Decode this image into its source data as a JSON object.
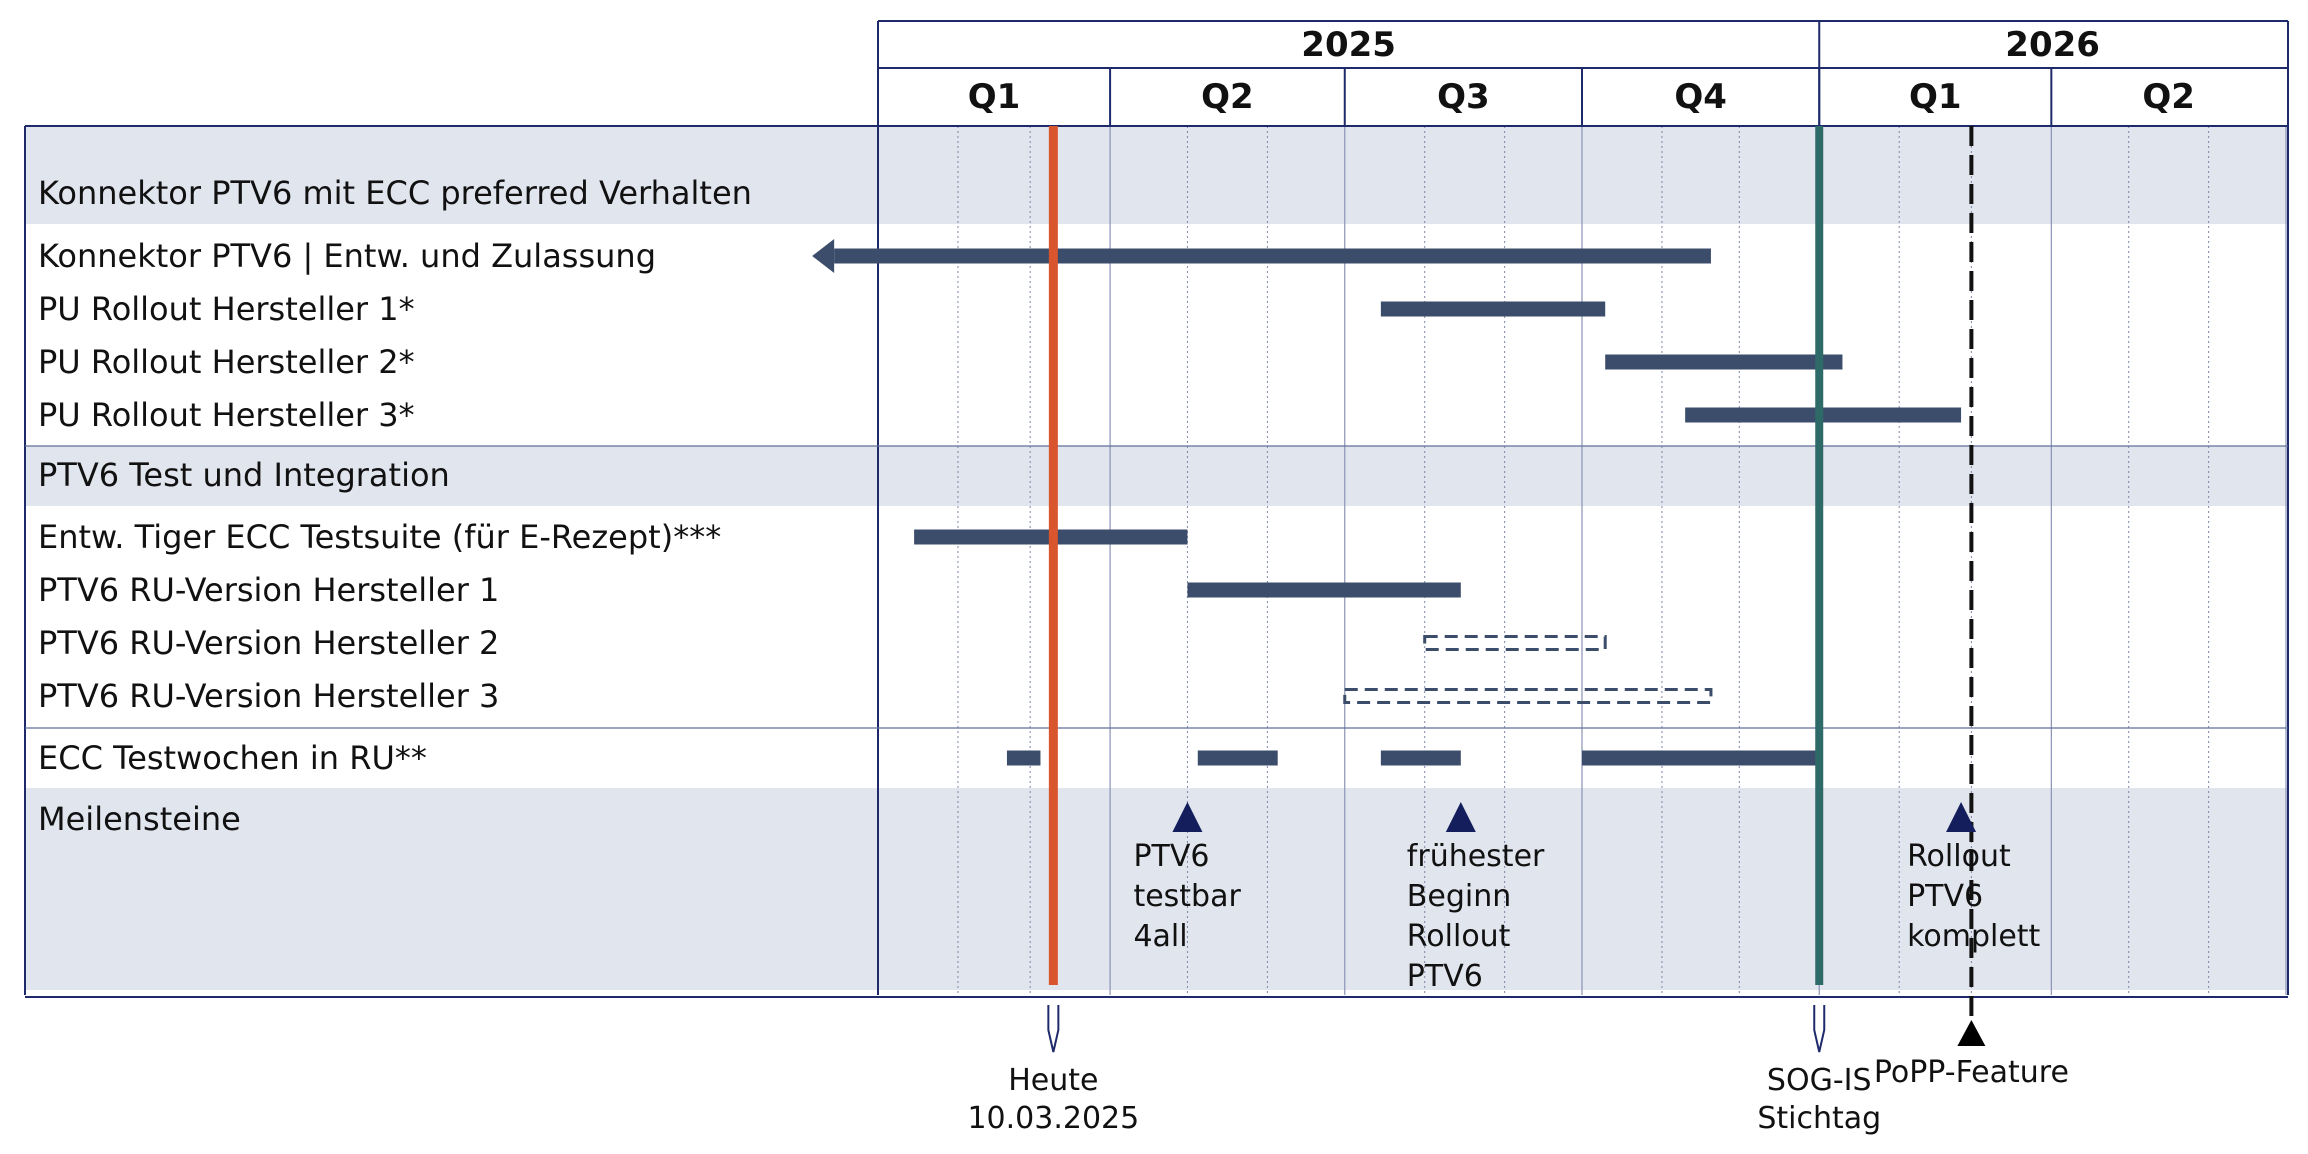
{
  "chart_data": {
    "type": "gantt",
    "time_axis": {
      "start": "2025-01-01",
      "end": "2026-07-01",
      "years": [
        {
          "label": "2025",
          "start": "2025-01-01",
          "end": "2026-01-01"
        },
        {
          "label": "2026",
          "start": "2026-01-01",
          "end": "2026-07-01"
        }
      ],
      "quarters": [
        {
          "label": "Q1",
          "start": "2025-01-01",
          "end": "2025-04-01"
        },
        {
          "label": "Q2",
          "start": "2025-04-01",
          "end": "2025-07-01"
        },
        {
          "label": "Q3",
          "start": "2025-07-01",
          "end": "2025-10-01"
        },
        {
          "label": "Q4",
          "start": "2025-10-01",
          "end": "2026-01-01"
        },
        {
          "label": "Q1",
          "start": "2026-01-01",
          "end": "2026-04-01"
        },
        {
          "label": "Q2",
          "start": "2026-04-01",
          "end": "2026-07-01"
        }
      ],
      "grid": "monthly-dotted"
    },
    "colors": {
      "bar": "#3c4d6b",
      "band": "#e1e5ee",
      "frame": "#1f2a6b",
      "today": "#d9552e",
      "deadline": "#2e6b68",
      "milestone": "#141e5c",
      "dashed_line": "#111111"
    },
    "groups": [
      {
        "header": "Konnektor PTV6 mit ECC preferred Verhalten",
        "rows": [
          {
            "label": "Konnektor PTV6 | Entw. und Zulassung",
            "bars": [
              {
                "start": "2024-12-15",
                "end": "2025-11-20",
                "style": "solid",
                "arrow_left": true
              }
            ]
          },
          {
            "label": "PU Rollout Hersteller 1*",
            "bars": [
              {
                "start": "2025-07-15",
                "end": "2025-10-10",
                "style": "solid"
              }
            ]
          },
          {
            "label": "PU Rollout Hersteller 2*",
            "bars": [
              {
                "start": "2025-10-10",
                "end": "2026-01-10",
                "style": "solid"
              }
            ]
          },
          {
            "label": "PU Rollout Hersteller 3*",
            "bars": [
              {
                "start": "2025-11-10",
                "end": "2026-02-25",
                "style": "solid"
              }
            ]
          }
        ]
      },
      {
        "header": "PTV6 Test und Integration",
        "rows": [
          {
            "label": "Entw. Tiger ECC Testsuite (für E-Rezept)***",
            "bars": [
              {
                "start": "2025-01-15",
                "end": "2025-05-01",
                "style": "solid"
              }
            ]
          },
          {
            "label": "PTV6 RU-Version Hersteller 1",
            "bars": [
              {
                "start": "2025-05-01",
                "end": "2025-08-15",
                "style": "solid"
              }
            ]
          },
          {
            "label": "PTV6 RU-Version Hersteller 2",
            "bars": [
              {
                "start": "2025-08-01",
                "end": "2025-10-10",
                "style": "dashed"
              }
            ]
          },
          {
            "label": "PTV6 RU-Version Hersteller 3",
            "bars": [
              {
                "start": "2025-07-01",
                "end": "2025-11-20",
                "style": "dashed"
              }
            ]
          }
        ]
      },
      {
        "header": null,
        "rows": [
          {
            "label": "ECC Testwochen in RU**",
            "bars": [
              {
                "start": "2025-02-20",
                "end": "2025-03-05",
                "style": "solid"
              },
              {
                "start": "2025-05-05",
                "end": "2025-06-05",
                "style": "solid"
              },
              {
                "start": "2025-07-15",
                "end": "2025-08-15",
                "style": "solid"
              },
              {
                "start": "2025-10-01",
                "end": "2026-01-01",
                "style": "solid"
              }
            ]
          }
        ]
      }
    ],
    "milestones_row": {
      "label": "Meilensteine",
      "items": [
        {
          "date": "2025-05-01",
          "lines": [
            "PTV6",
            "testbar",
            "4all"
          ]
        },
        {
          "date": "2025-08-15",
          "lines": [
            "frühester",
            "Beginn",
            "Rollout",
            "PTV6"
          ]
        },
        {
          "date": "2026-02-25",
          "lines": [
            "Rollout",
            "PTV6",
            "komplett"
          ]
        }
      ]
    },
    "vertical_markers": [
      {
        "date": "2025-03-10",
        "style": "today",
        "lines": [
          "Heute",
          "10.03.2025"
        ]
      },
      {
        "date": "2026-01-01",
        "style": "deadline",
        "lines": [
          "SOG-IS",
          "Stichtag"
        ]
      },
      {
        "date": "2026-03-01",
        "style": "dashed",
        "lines": [
          "PoPP-Feature"
        ]
      }
    ]
  }
}
